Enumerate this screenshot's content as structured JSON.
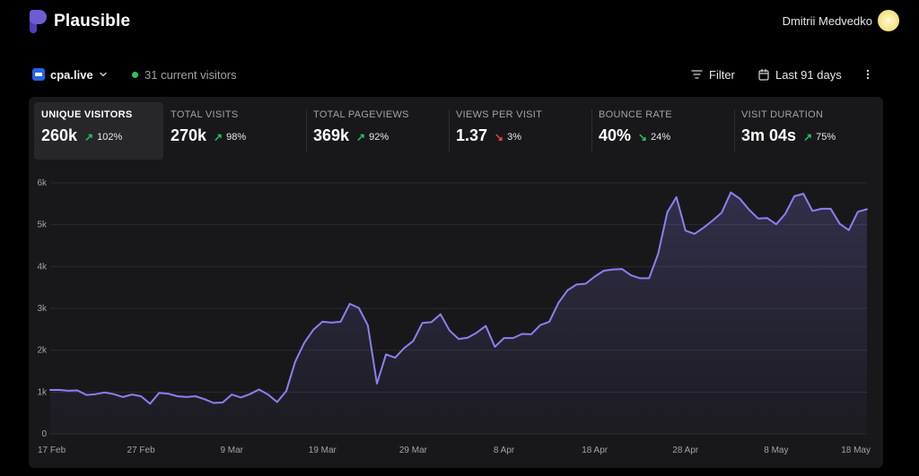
{
  "brand": {
    "name": "Plausible",
    "color": "#6d5dd3"
  },
  "user": {
    "name": "Dmitrii Medvedko"
  },
  "site": {
    "name": "cpa.live"
  },
  "live": {
    "text": "31 current visitors"
  },
  "toolbar": {
    "filter_label": "Filter",
    "period_label": "Last 91 days"
  },
  "metrics": [
    {
      "label": "UNIQUE VISITORS",
      "value": "260k",
      "change": "102%",
      "direction": "up"
    },
    {
      "label": "TOTAL VISITS",
      "value": "270k",
      "change": "98%",
      "direction": "up"
    },
    {
      "label": "TOTAL PAGEVIEWS",
      "value": "369k",
      "change": "92%",
      "direction": "up"
    },
    {
      "label": "VIEWS PER VISIT",
      "value": "1.37",
      "change": "3%",
      "direction": "down"
    },
    {
      "label": "BOUNCE RATE",
      "value": "40%",
      "change": "24%",
      "direction": "down"
    },
    {
      "label": "VISIT DURATION",
      "value": "3m 04s",
      "change": "75%",
      "direction": "up"
    }
  ],
  "chart_data": {
    "type": "area",
    "series_color": "#8b80f0",
    "ylim": [
      0,
      6000
    ],
    "y_ticks": [
      "0",
      "1k",
      "2k",
      "3k",
      "4k",
      "5k",
      "6k"
    ],
    "x_ticks": [
      "17 Feb",
      "27 Feb",
      "9 Mar",
      "19 Mar",
      "29 Mar",
      "8 Apr",
      "18 Apr",
      "28 Apr",
      "8 May",
      "18 May"
    ],
    "values": [
      1050,
      1050,
      1030,
      1040,
      930,
      950,
      990,
      950,
      880,
      940,
      900,
      720,
      980,
      960,
      900,
      880,
      900,
      830,
      740,
      750,
      940,
      870,
      950,
      1060,
      940,
      760,
      1020,
      1730,
      2180,
      2490,
      2680,
      2660,
      2680,
      3110,
      3010,
      2590,
      1200,
      1900,
      1820,
      2050,
      2220,
      2650,
      2670,
      2860,
      2470,
      2270,
      2300,
      2420,
      2580,
      2080,
      2290,
      2290,
      2390,
      2380,
      2600,
      2680,
      3130,
      3430,
      3570,
      3590,
      3760,
      3900,
      3930,
      3940,
      3790,
      3720,
      3720,
      4310,
      5300,
      5660,
      4860,
      4780,
      4930,
      5100,
      5290,
      5770,
      5620,
      5360,
      5150,
      5160,
      5010,
      5260,
      5680,
      5740,
      5330,
      5380,
      5380,
      5020,
      4870,
      5310,
      5370
    ]
  }
}
